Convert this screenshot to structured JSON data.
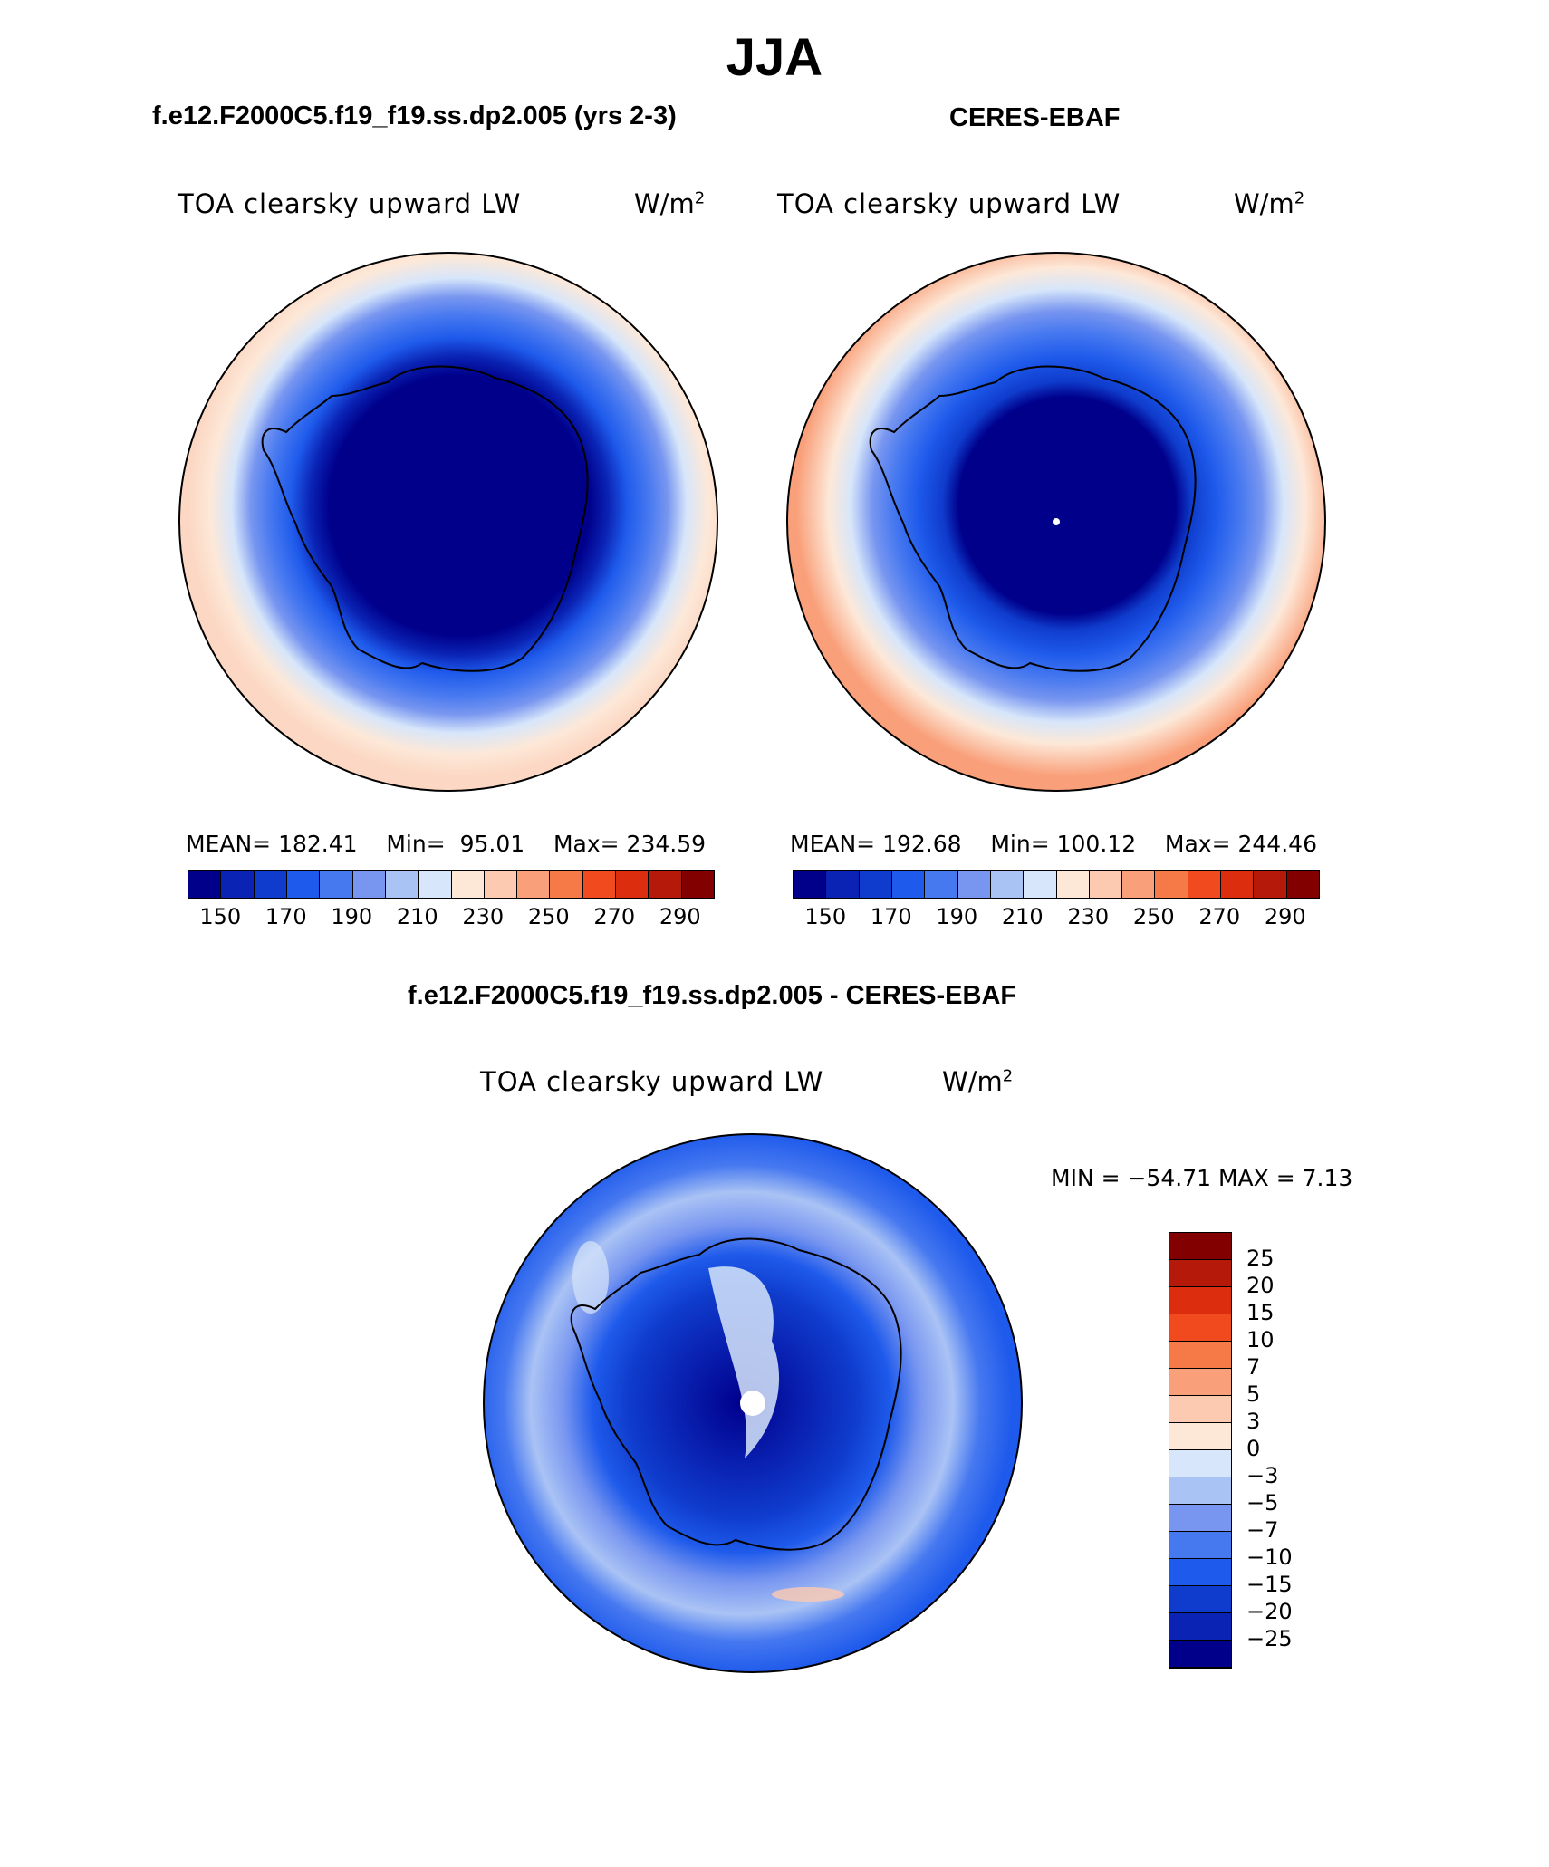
{
  "title": "JJA",
  "panels": {
    "model": {
      "title": "f.e12.F2000C5.f19_f19.ss.dp2.005 (yrs 2-3)",
      "field": "TOA clearsky upward LW",
      "unit_base": "W/m",
      "unit_exp": "2",
      "mean_label": "MEAN=",
      "mean": "182.41",
      "min_label": "Min=",
      "min": "95.01",
      "max_label": "Max=",
      "max": "234.59"
    },
    "obs": {
      "title": "CERES-EBAF",
      "field": "TOA clearsky upward LW",
      "unit_base": "W/m",
      "unit_exp": "2",
      "mean_label": "MEAN=",
      "mean": "192.68",
      "min_label": "Min=",
      "min": "100.12",
      "max_label": "Max=",
      "max": "244.46"
    },
    "diff": {
      "title": "f.e12.F2000C5.f19_f19.ss.dp2.005 - CERES-EBAF",
      "field": "TOA clearsky upward LW",
      "unit_base": "W/m",
      "unit_exp": "2",
      "minmax": "MIN = −54.71  MAX =    7.13"
    }
  },
  "colorbar": {
    "ticks": [
      "150",
      "170",
      "190",
      "210",
      "230",
      "250",
      "270",
      "290"
    ],
    "colors": [
      "#00008b",
      "#0a23b4",
      "#0f3ccc",
      "#1e5aeb",
      "#4678f0",
      "#7896f0",
      "#aac3f5",
      "#d7e6fa",
      "#fde8d8",
      "#fcc9b1",
      "#f9a07a",
      "#f57a48",
      "#f04a1e",
      "#dc2d0f",
      "#b4190a",
      "#820000"
    ]
  },
  "diff_colorbar": {
    "labels": [
      "25",
      "20",
      "15",
      "10",
      "7",
      "5",
      "3",
      "0",
      "−3",
      "−5",
      "−7",
      "−10",
      "−15",
      "−20",
      "−25"
    ],
    "colors": [
      "#820000",
      "#b4190a",
      "#dc2d0f",
      "#f04a1e",
      "#f57a48",
      "#f9a07a",
      "#fcc9b1",
      "#fde8d8",
      "#d7e6fa",
      "#aac3f5",
      "#7896f0",
      "#4678f0",
      "#1e5aeb",
      "#0f3ccc",
      "#0a23b4",
      "#00008b"
    ]
  }
}
